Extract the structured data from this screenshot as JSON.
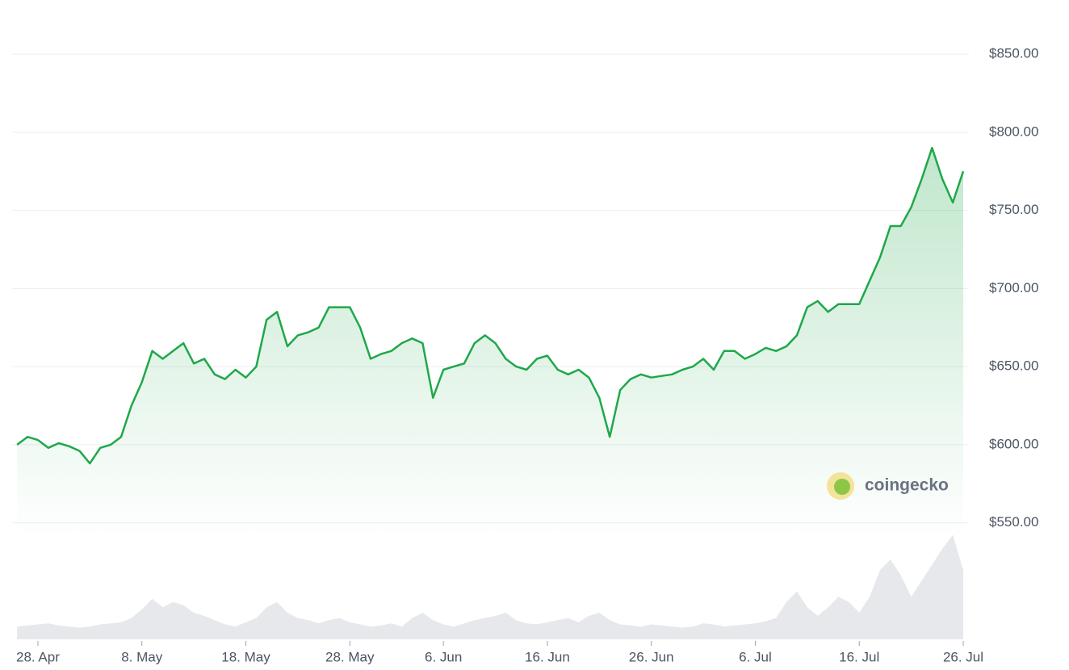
{
  "chart_data": {
    "type": "line",
    "watermark": "coingecko",
    "categories": [
      null,
      null,
      "28. Apr",
      null,
      null,
      null,
      null,
      null,
      null,
      null,
      null,
      null,
      "8. May",
      null,
      null,
      null,
      null,
      null,
      null,
      null,
      null,
      null,
      "18. May",
      null,
      null,
      null,
      null,
      null,
      null,
      null,
      null,
      null,
      "28. May",
      null,
      null,
      null,
      null,
      null,
      null,
      null,
      null,
      "6. Jun",
      null,
      null,
      null,
      null,
      null,
      null,
      null,
      null,
      null,
      "16. Jun",
      null,
      null,
      null,
      null,
      null,
      null,
      null,
      null,
      null,
      "26. Jun",
      null,
      null,
      null,
      null,
      null,
      null,
      null,
      null,
      null,
      "6. Jul",
      null,
      null,
      null,
      null,
      null,
      null,
      null,
      null,
      null,
      "16. Jul",
      null,
      null,
      null,
      null,
      null,
      null,
      null,
      null,
      null,
      "26. Jul"
    ],
    "series": [
      {
        "color": "#1fa84a",
        "values": [
          600,
          605,
          603,
          598,
          601,
          599,
          596,
          588,
          598,
          600,
          605,
          625,
          640,
          660,
          655,
          660,
          665,
          652,
          655,
          645,
          642,
          648,
          643,
          650,
          680,
          685,
          663,
          670,
          672,
          675,
          688,
          688,
          688,
          675,
          655,
          658,
          660,
          665,
          668,
          665,
          630,
          648,
          650,
          652,
          665,
          670,
          665,
          655,
          650,
          648,
          655,
          657,
          648,
          645,
          648,
          643,
          630,
          605,
          635,
          642,
          645,
          643,
          644,
          645,
          648,
          650,
          655,
          648,
          660,
          660,
          655,
          658,
          662,
          660,
          663,
          670,
          688,
          692,
          685,
          690,
          690,
          690,
          705,
          720,
          740,
          740,
          752,
          770,
          790,
          770,
          755,
          775
        ]
      },
      {
        "color": "#e6e8ec",
        "axis": "y2",
        "values": [
          12,
          13,
          14,
          15,
          13,
          12,
          11,
          12,
          14,
          15,
          16,
          20,
          28,
          38,
          30,
          35,
          32,
          25,
          22,
          18,
          14,
          12,
          16,
          20,
          30,
          35,
          25,
          20,
          18,
          15,
          18,
          20,
          16,
          14,
          12,
          13,
          15,
          12,
          20,
          25,
          18,
          14,
          12,
          15,
          18,
          20,
          22,
          25,
          18,
          15,
          14,
          16,
          18,
          20,
          16,
          22,
          25,
          18,
          14,
          13,
          12,
          14,
          13,
          12,
          11,
          12,
          15,
          14,
          12,
          13,
          14,
          15,
          17,
          20,
          35,
          45,
          30,
          22,
          30,
          40,
          35,
          25,
          40,
          65,
          75,
          60,
          40,
          55,
          70,
          85,
          98,
          65
        ]
      }
    ],
    "ylim": [
      540,
      864
    ],
    "yticks": [
      {
        "value": 550,
        "label": "$550.00"
      },
      {
        "value": 600,
        "label": "$600.00"
      },
      {
        "value": 650,
        "label": "$650.00"
      },
      {
        "value": 700,
        "label": "$700.00"
      },
      {
        "value": 750,
        "label": "$750.00"
      },
      {
        "value": 800,
        "label": "$800.00"
      },
      {
        "value": 850,
        "label": "$850.00"
      }
    ],
    "y2lim": [
      0,
      100
    ],
    "grid": true
  }
}
